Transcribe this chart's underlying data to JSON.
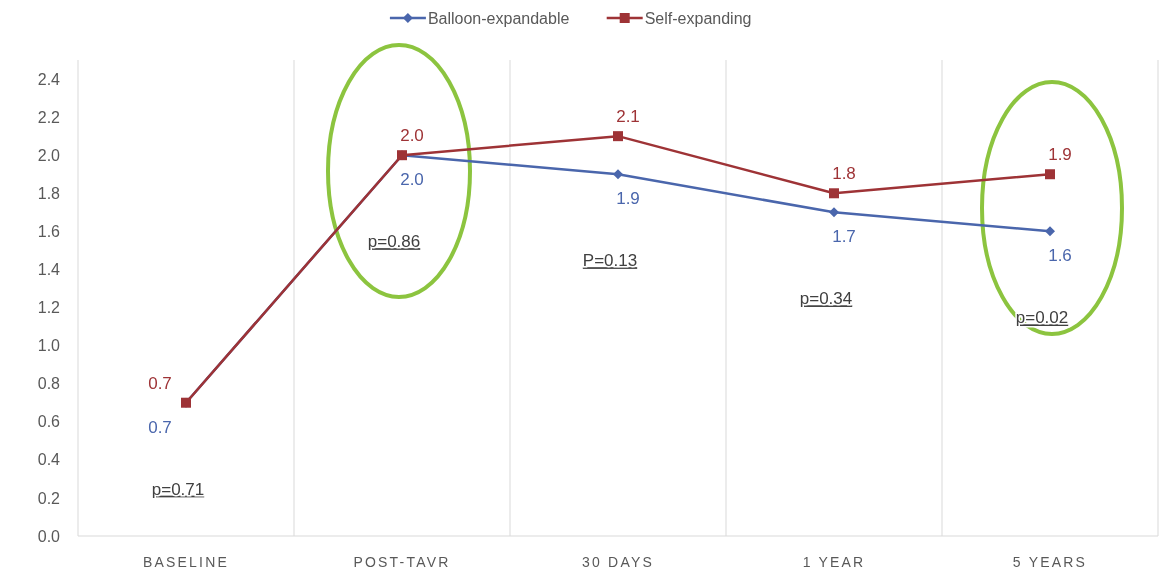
{
  "chart_data": {
    "type": "line",
    "categories": [
      "BASELINE",
      "POST-TAVR",
      "30 DAYS",
      "1 YEAR",
      "5 YEARS"
    ],
    "series": [
      {
        "name": "Balloon-expandable",
        "color": "#4a66ac",
        "marker": "diamond",
        "values": [
          0.7,
          2.0,
          1.9,
          1.7,
          1.6
        ],
        "value_labels": [
          "0.7",
          "2.0",
          "1.9",
          "1.7",
          "1.6"
        ]
      },
      {
        "name": "Self-expanding",
        "color": "#9e3336",
        "marker": "square",
        "values": [
          0.7,
          2.0,
          2.1,
          1.8,
          1.9
        ],
        "value_labels": [
          "0.7",
          "2.0",
          "2.1",
          "1.8",
          "1.9"
        ]
      }
    ],
    "ylim": [
      0,
      2.5
    ],
    "yticks": [
      {
        "value": 0,
        "label": "0.0"
      },
      0.2,
      0.4,
      0.6,
      0.8,
      {
        "value": 1,
        "label": "1.0"
      },
      1.2,
      1.4,
      1.6,
      1.8,
      {
        "value": 2,
        "label": "2.0"
      },
      2.2,
      2.4
    ],
    "grid": "x",
    "legend": "top",
    "annotations": [
      "p=0.71",
      "p=0.86",
      "P=0.13",
      "p=0.34",
      "p=0.02"
    ]
  }
}
